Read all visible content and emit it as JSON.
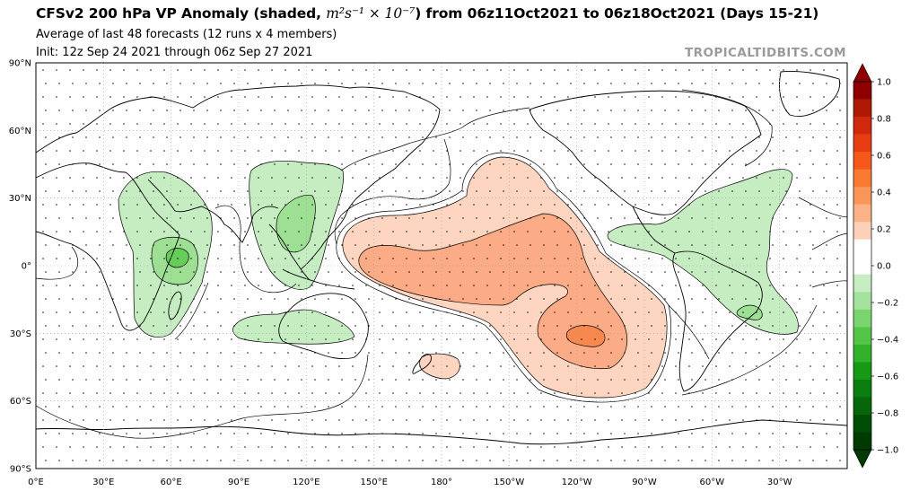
{
  "title": {
    "prefix": "CFSv2 200 hPa VP Anomaly (shaded, ",
    "units": "m²s⁻¹ × 10⁻⁷",
    "suffix": ") from 06z11Oct2021 to 06z18Oct2021 (Days 15-21)"
  },
  "subtitle_1": "Average of last 48 forecasts (12 runs x 4 members)",
  "subtitle_2": "Init: 12z Sep 24 2021 through 06z Sep 27 2021",
  "watermark": "TROPICALTIDBITS.COM",
  "lat_ticks": [
    "90°N",
    "60°N",
    "30°N",
    "0°",
    "30°S",
    "60°S",
    "90°S"
  ],
  "lon_ticks": [
    "0°E",
    "30°E",
    "60°E",
    "90°E",
    "120°E",
    "150°E",
    "180°",
    "150°W",
    "120°W",
    "90°W",
    "60°W",
    "30°W"
  ],
  "colorbar": {
    "labels": [
      "1.0",
      "0.8",
      "0.6",
      "0.4",
      "0.2",
      "0.0",
      "−0.2",
      "−0.4",
      "−0.6",
      "−0.8",
      "−1.0"
    ],
    "levels_top_to_bottom": [
      {
        "color": "#8e0000"
      },
      {
        "color": "#b01806"
      },
      {
        "color": "#cf280d"
      },
      {
        "color": "#e83c12"
      },
      {
        "color": "#f5581a"
      },
      {
        "color": "#fb7a32"
      },
      {
        "color": "#fb965a"
      },
      {
        "color": "#fcb287"
      },
      {
        "color": "#fdd0b8"
      },
      {
        "color": "#ffffff"
      },
      {
        "color": "#ffffff"
      },
      {
        "color": "#c7edc3"
      },
      {
        "color": "#a5e29d"
      },
      {
        "color": "#7bd56f"
      },
      {
        "color": "#53c647"
      },
      {
        "color": "#31b22a"
      },
      {
        "color": "#169a16"
      },
      {
        "color": "#0a7f0f"
      },
      {
        "color": "#05660a"
      },
      {
        "color": "#004d05"
      },
      {
        "color": "#003a03"
      }
    ]
  },
  "shading_colors": {
    "pos_1": "#fdd5c0",
    "pos_2": "#fbab86",
    "pos_3": "#f8884e",
    "neg_1": "#c6edc2",
    "neg_2": "#9ddf93",
    "neg_3": "#66cd58",
    "contour": "#000000",
    "coastline": "#000000"
  }
}
